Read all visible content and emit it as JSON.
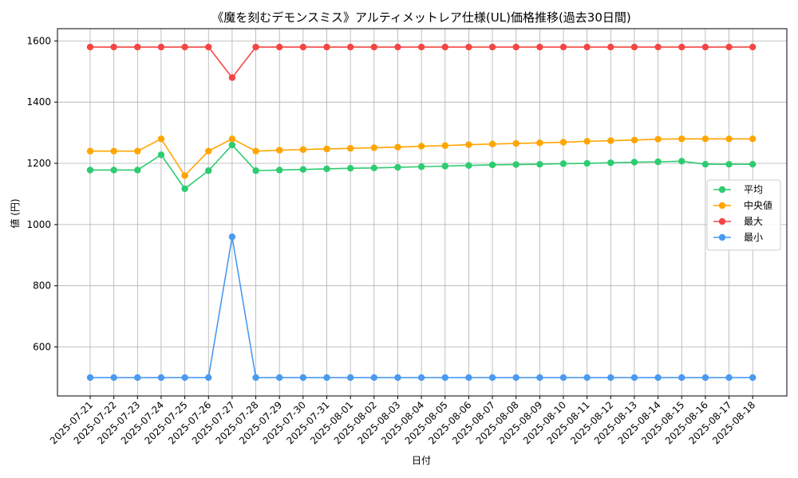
{
  "chart_data": {
    "type": "line",
    "title": "《魔を刻むデモンスミス》アルティメットレア仕様(UL)価格推移(過去30日間)",
    "xlabel": "日付",
    "ylabel": "値 (円)",
    "ylim": [
      440,
      1640
    ],
    "yticks": [
      600,
      800,
      1000,
      1200,
      1400,
      1600
    ],
    "grid": true,
    "legend_position": "center-right",
    "categories": [
      "2025-07-21",
      "2025-07-22",
      "2025-07-23",
      "2025-07-24",
      "2025-07-25",
      "2025-07-26",
      "2025-07-27",
      "2025-07-28",
      "2025-07-29",
      "2025-07-30",
      "2025-07-31",
      "2025-08-01",
      "2025-08-02",
      "2025-08-03",
      "2025-08-04",
      "2025-08-05",
      "2025-08-06",
      "2025-08-07",
      "2025-08-08",
      "2025-08-09",
      "2025-08-10",
      "2025-08-11",
      "2025-08-12",
      "2025-08-13",
      "2025-08-14",
      "2025-08-15",
      "2025-08-16",
      "2025-08-17",
      "2025-08-18"
    ],
    "series": [
      {
        "name": "平均",
        "color": "#2ecc71",
        "values": [
          1178,
          1178,
          1178,
          1228,
          1117,
          1176,
          1260,
          1176,
          1178,
          1180,
          1182,
          1184,
          1185,
          1187,
          1189,
          1191,
          1193,
          1195,
          1196,
          1197,
          1199,
          1200,
          1202,
          1204,
          1205,
          1207,
          1197,
          1197,
          1197
        ]
      },
      {
        "name": "中央値",
        "color": "#ffa500",
        "values": [
          1240,
          1240,
          1240,
          1280,
          1160,
          1240,
          1280,
          1240,
          1243,
          1245,
          1247,
          1249,
          1251,
          1253,
          1256,
          1258,
          1261,
          1263,
          1265,
          1267,
          1269,
          1272,
          1274,
          1276,
          1279,
          1280,
          1280,
          1280,
          1280
        ]
      },
      {
        "name": "最大",
        "color": "#f44545",
        "values": [
          1580,
          1580,
          1580,
          1580,
          1580,
          1580,
          1480,
          1580,
          1580,
          1580,
          1580,
          1580,
          1580,
          1580,
          1580,
          1580,
          1580,
          1580,
          1580,
          1580,
          1580,
          1580,
          1580,
          1580,
          1580,
          1580,
          1580,
          1580,
          1580
        ]
      },
      {
        "name": "最小",
        "color": "#4a9af0",
        "values": [
          500,
          500,
          500,
          500,
          500,
          500,
          960,
          500,
          500,
          500,
          500,
          500,
          500,
          500,
          500,
          500,
          500,
          500,
          500,
          500,
          500,
          500,
          500,
          500,
          500,
          500,
          500,
          500,
          500
        ]
      }
    ]
  }
}
